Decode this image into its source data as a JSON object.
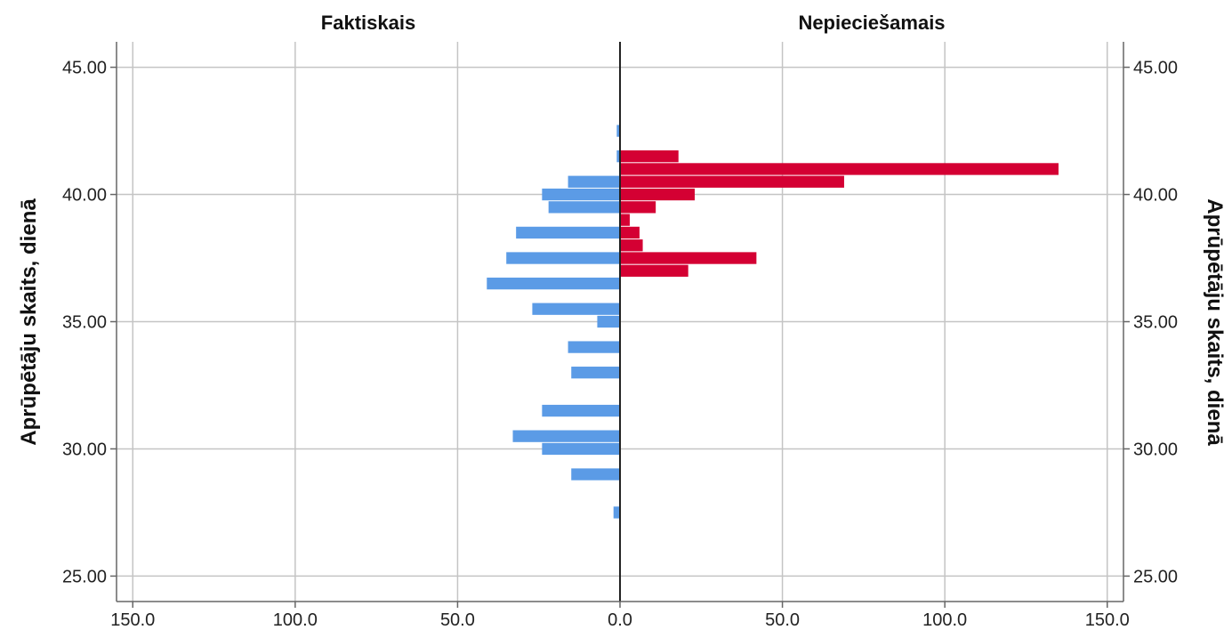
{
  "chart_data": {
    "type": "bar",
    "orientation": "horizontal",
    "layout": "population-pyramid",
    "panels": [
      {
        "title": "Faktiskais",
        "color": "#5b9be6"
      },
      {
        "title": "Nepieciešamais",
        "color": "#d40033"
      }
    ],
    "ylabel": "Aprūpētāju skaits, dienā",
    "ylim": [
      24,
      46
    ],
    "yticks": [
      "25.00",
      "30.00",
      "35.00",
      "40.00",
      "45.00"
    ],
    "ytick_values": [
      25,
      30,
      35,
      40,
      45
    ],
    "xlim": [
      -155,
      155
    ],
    "xticks": [
      {
        "value": -150,
        "label": "150.0"
      },
      {
        "value": -100,
        "label": "100.0"
      },
      {
        "value": -50,
        "label": "50.0"
      },
      {
        "value": 0,
        "label": "0.0"
      },
      {
        "value": 50,
        "label": "50.0"
      },
      {
        "value": 100,
        "label": "100.0"
      },
      {
        "value": 150,
        "label": "150.0"
      }
    ],
    "bin_width": 0.5,
    "grid": true,
    "series": [
      {
        "name": "Faktiskais",
        "side": "left",
        "color": "#5b9be6",
        "bins": [
          {
            "y": 42.5,
            "value": 1
          },
          {
            "y": 41.5,
            "value": 1
          },
          {
            "y": 40.5,
            "value": 16
          },
          {
            "y": 40.0,
            "value": 24
          },
          {
            "y": 39.5,
            "value": 22
          },
          {
            "y": 38.5,
            "value": 32
          },
          {
            "y": 37.5,
            "value": 35
          },
          {
            "y": 36.5,
            "value": 41
          },
          {
            "y": 35.5,
            "value": 27
          },
          {
            "y": 35.0,
            "value": 7
          },
          {
            "y": 34.0,
            "value": 16
          },
          {
            "y": 33.0,
            "value": 15
          },
          {
            "y": 31.5,
            "value": 24
          },
          {
            "y": 30.5,
            "value": 33
          },
          {
            "y": 30.0,
            "value": 24
          },
          {
            "y": 29.0,
            "value": 15
          },
          {
            "y": 27.5,
            "value": 2
          }
        ]
      },
      {
        "name": "Nepieciešamais",
        "side": "right",
        "color": "#d40033",
        "bins": [
          {
            "y": 41.5,
            "value": 18
          },
          {
            "y": 41.0,
            "value": 135
          },
          {
            "y": 40.5,
            "value": 69
          },
          {
            "y": 40.0,
            "value": 23
          },
          {
            "y": 39.5,
            "value": 11
          },
          {
            "y": 39.0,
            "value": 3
          },
          {
            "y": 38.5,
            "value": 6
          },
          {
            "y": 38.0,
            "value": 7
          },
          {
            "y": 37.5,
            "value": 42
          },
          {
            "y": 37.0,
            "value": 21
          }
        ]
      }
    ]
  }
}
